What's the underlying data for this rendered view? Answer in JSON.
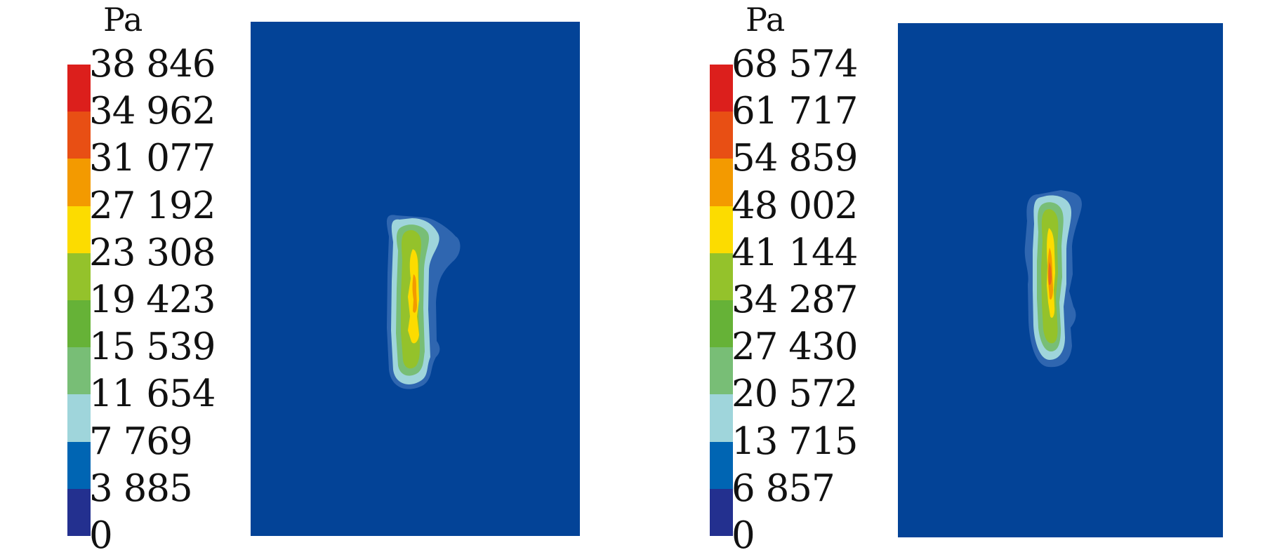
{
  "colorscale": [
    "#23308f",
    "#0065b3",
    "#9fd5db",
    "#78be76",
    "#66b237",
    "#94c22b",
    "#fcdc00",
    "#f39a00",
    "#e84f14",
    "#dc1f1c"
  ],
  "background_color": "#034397",
  "panels": [
    {
      "unit": "Pa",
      "ticks": [
        "38 846",
        "34 962",
        "31 077",
        "27 192",
        "23 308",
        "19 423",
        "15 539",
        "11 654",
        "7 769",
        "3 885",
        "0"
      ]
    },
    {
      "unit": "Pa",
      "ticks": [
        "68 574",
        "61 717",
        "54 859",
        "48 002",
        "41 144",
        "34 287",
        "27 430",
        "20 572",
        "13 715",
        "6 857",
        "0"
      ]
    }
  ]
}
